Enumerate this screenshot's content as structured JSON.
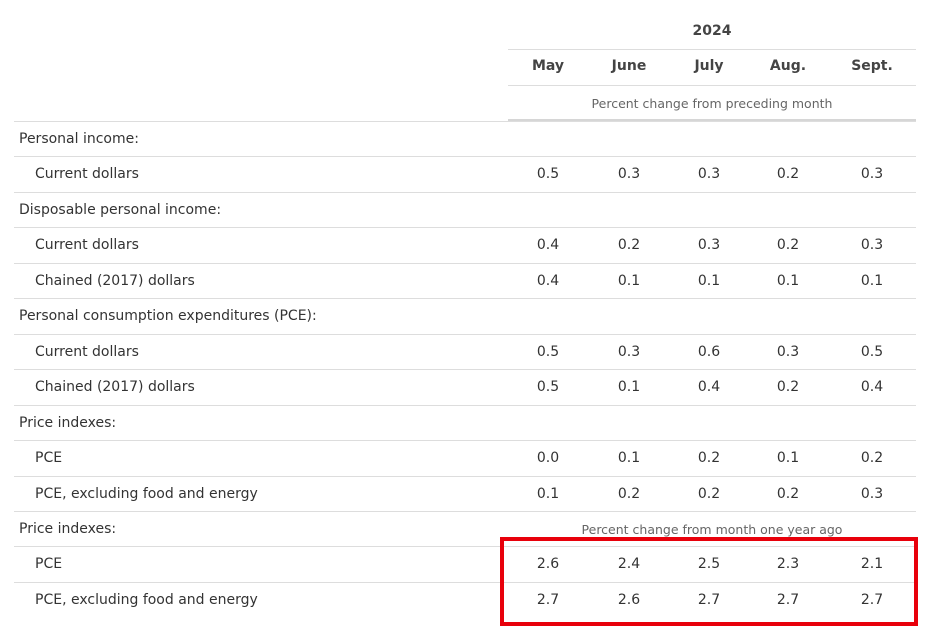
{
  "header": {
    "year": "2024",
    "months": [
      "May",
      "June",
      "July",
      "Aug.",
      "Sept."
    ],
    "subheader_monthly": "Percent change from preceding month",
    "subheader_yearly": "Percent change from month one year ago"
  },
  "rows": [
    {
      "label": "Personal income:",
      "indent": false,
      "values": []
    },
    {
      "label": "Current dollars",
      "indent": true,
      "values": [
        "0.5",
        "0.3",
        "0.3",
        "0.2",
        "0.3"
      ]
    },
    {
      "label": "Disposable personal income:",
      "indent": false,
      "values": []
    },
    {
      "label": "Current dollars",
      "indent": true,
      "values": [
        "0.4",
        "0.2",
        "0.3",
        "0.2",
        "0.3"
      ]
    },
    {
      "label": "Chained (2017) dollars",
      "indent": true,
      "values": [
        "0.4",
        "0.1",
        "0.1",
        "0.1",
        "0.1"
      ]
    },
    {
      "label": "Personal consumption expenditures (PCE):",
      "indent": false,
      "values": []
    },
    {
      "label": "Current dollars",
      "indent": true,
      "values": [
        "0.5",
        "0.3",
        "0.6",
        "0.3",
        "0.5"
      ]
    },
    {
      "label": "Chained (2017) dollars",
      "indent": true,
      "values": [
        "0.5",
        "0.1",
        "0.4",
        "0.2",
        "0.4"
      ]
    },
    {
      "label": "Price indexes:",
      "indent": false,
      "values": []
    },
    {
      "label": "PCE",
      "indent": true,
      "values": [
        "0.0",
        "0.1",
        "0.2",
        "0.1",
        "0.2"
      ]
    },
    {
      "label": "PCE, excluding food and energy",
      "indent": true,
      "values": [
        "0.1",
        "0.2",
        "0.2",
        "0.2",
        "0.3"
      ]
    },
    {
      "label": "Price indexes:",
      "indent": false,
      "values": []
    },
    {
      "label": "PCE",
      "indent": true,
      "values": [
        "2.6",
        "2.4",
        "2.5",
        "2.3",
        "2.1"
      ]
    },
    {
      "label": "PCE, excluding food and energy",
      "indent": true,
      "values": [
        "2.7",
        "2.6",
        "2.7",
        "2.7",
        "2.7"
      ]
    }
  ],
  "highlight_color": "#e8000b"
}
